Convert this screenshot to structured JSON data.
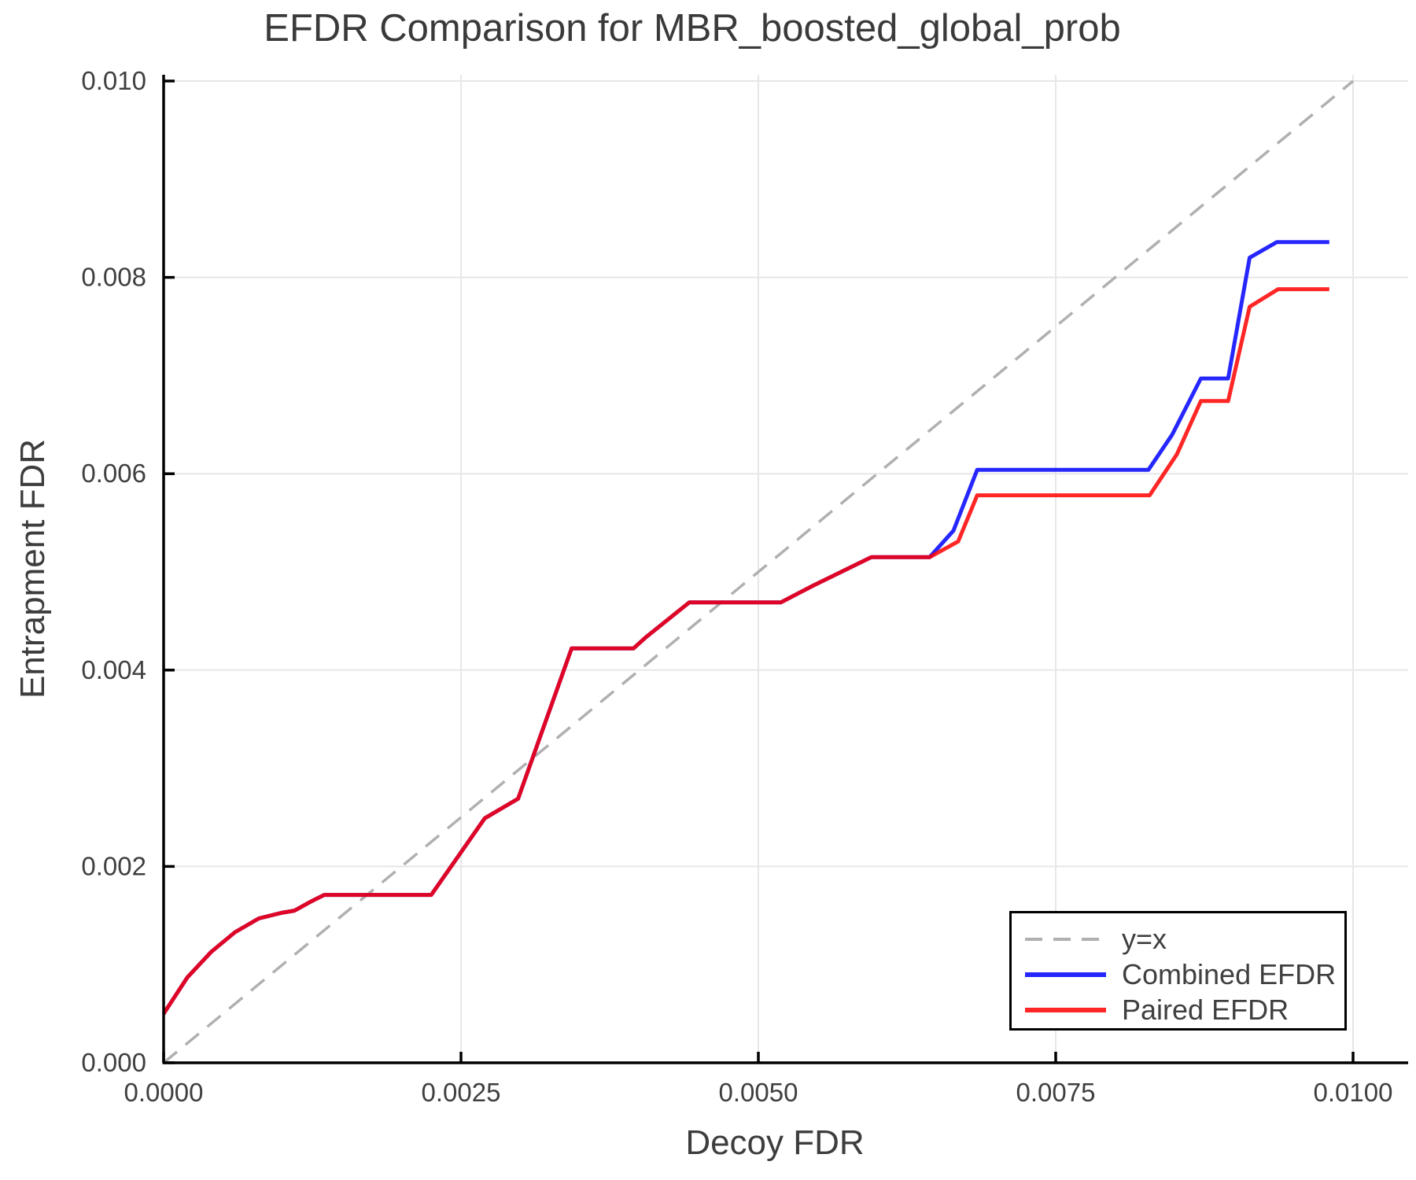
{
  "title": "EFDR Comparison for MBR_boosted_global_prob",
  "xlabel": "Decoy FDR",
  "ylabel": "Entrapment FDR",
  "legend": {
    "items": [
      {
        "label": "y=x",
        "color": "#b0b0b0",
        "dashed": true,
        "opacity": 1
      },
      {
        "label": "Combined EFDR",
        "color": "#0000ff",
        "dashed": false,
        "opacity": 0.85
      },
      {
        "label": "Paired EFDR",
        "color": "#ff0000",
        "dashed": false,
        "opacity": 0.85
      }
    ]
  },
  "chart_data": {
    "type": "line",
    "title": "EFDR Comparison for MBR_boosted_global_prob",
    "xlabel": "Decoy FDR",
    "ylabel": "Entrapment FDR",
    "xlim": [
      0,
      0.010463
    ],
    "ylim": [
      0,
      0.010064
    ],
    "xticks": [
      0.0,
      0.0025,
      0.005,
      0.0075,
      0.01
    ],
    "xtick_labels": [
      "0.0000",
      "0.0025",
      "0.0050",
      "0.0075",
      "0.0100"
    ],
    "yticks": [
      0.0,
      0.002,
      0.004,
      0.006,
      0.008,
      0.01
    ],
    "ytick_labels": [
      "0.000",
      "0.002",
      "0.004",
      "0.006",
      "0.008",
      "0.010"
    ],
    "grid": true,
    "legend_position": "lower right",
    "colors": {
      "grid": "#e7e7e7",
      "spine": "#000000",
      "tick_text": "#3f3f3f"
    },
    "series": [
      {
        "name": "y=x",
        "color": "#b0b0b0",
        "dashed": true,
        "width": 3.5,
        "opacity": 1,
        "x": [
          0,
          0.01
        ],
        "y": [
          0,
          0.01
        ]
      },
      {
        "name": "Combined EFDR",
        "color": "#0000ff",
        "dashed": false,
        "width": 5,
        "opacity": 0.85,
        "x": [
          0,
          0.0002,
          0.0004,
          0.0006,
          0.0008,
          0.001,
          0.0011,
          0.00125,
          0.00135,
          0.00225,
          0.0027,
          0.00298,
          0.00343,
          0.00395,
          0.00405,
          0.00442,
          0.00519,
          0.00546,
          0.00595,
          0.00644,
          0.00664,
          0.00684,
          0.00828,
          0.00848,
          0.00872,
          0.00895,
          0.00913,
          0.00936,
          0.0098
        ],
        "y": [
          0.0005,
          0.00087,
          0.00113,
          0.00133,
          0.00147,
          0.00153,
          0.00155,
          0.00165,
          0.00171,
          0.00171,
          0.00249,
          0.00269,
          0.00422,
          0.00422,
          0.00433,
          0.00469,
          0.00469,
          0.00486,
          0.00515,
          0.00515,
          0.00542,
          0.00604,
          0.00604,
          0.0064,
          0.00697,
          0.00697,
          0.0082,
          0.00836,
          0.00836
        ]
      },
      {
        "name": "Paired EFDR",
        "color": "#ff0000",
        "dashed": false,
        "width": 5,
        "opacity": 0.85,
        "x": [
          0,
          0.0002,
          0.0004,
          0.0006,
          0.0008,
          0.001,
          0.0011,
          0.00125,
          0.00135,
          0.00225,
          0.0027,
          0.00298,
          0.00343,
          0.00395,
          0.00405,
          0.00442,
          0.00519,
          0.00546,
          0.00595,
          0.00644,
          0.00668,
          0.00684,
          0.00829,
          0.00852,
          0.00872,
          0.00895,
          0.00913,
          0.00937,
          0.0098
        ],
        "y": [
          0.0005,
          0.00087,
          0.00113,
          0.00133,
          0.00147,
          0.00153,
          0.00155,
          0.00165,
          0.00171,
          0.00171,
          0.00249,
          0.00269,
          0.00422,
          0.00422,
          0.00433,
          0.00469,
          0.00469,
          0.00486,
          0.00515,
          0.00515,
          0.00531,
          0.00578,
          0.00578,
          0.0062,
          0.00674,
          0.00674,
          0.0077,
          0.00788,
          0.00788
        ]
      }
    ]
  }
}
